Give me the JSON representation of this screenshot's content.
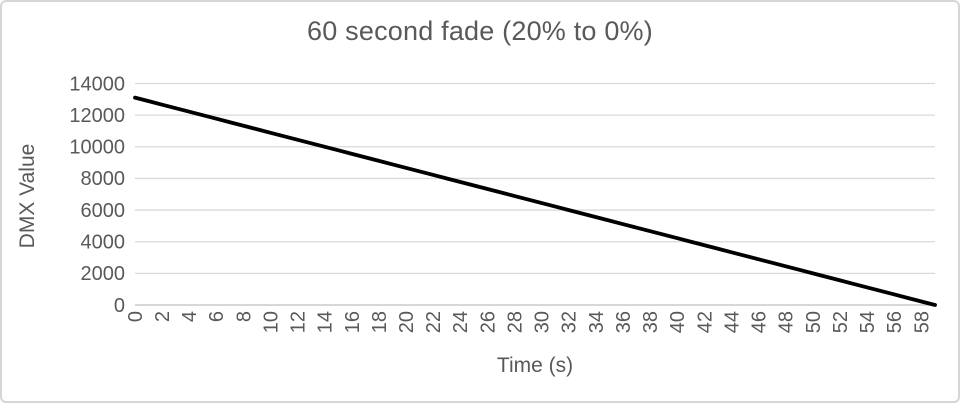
{
  "chart_data": {
    "type": "line",
    "title": "60 second fade (20% to 0%)",
    "xlabel": "Time (s)",
    "ylabel": "DMX Value",
    "x": [
      0,
      1,
      2,
      3,
      4,
      5,
      6,
      7,
      8,
      9,
      10,
      11,
      12,
      13,
      14,
      15,
      16,
      17,
      18,
      19,
      20,
      21,
      22,
      23,
      24,
      25,
      26,
      27,
      28,
      29,
      30,
      31,
      32,
      33,
      34,
      35,
      36,
      37,
      38,
      39,
      40,
      41,
      42,
      43,
      44,
      45,
      46,
      47,
      48,
      49,
      50,
      51,
      52,
      53,
      54,
      55,
      56,
      57,
      58,
      59
    ],
    "series": [
      {
        "name": "DMX Value",
        "values": [
          13107,
          12885,
          12663,
          12441,
          12218,
          11996,
          11774,
          11552,
          11330,
          11108,
          10885,
          10663,
          10441,
          10219,
          9997,
          9775,
          9553,
          9330,
          9108,
          8886,
          8664,
          8442,
          8220,
          7997,
          7775,
          7553,
          7331,
          7109,
          6887,
          6665,
          6442,
          6220,
          5998,
          5776,
          5554,
          5332,
          5110,
          4887,
          4665,
          4443,
          4221,
          3999,
          3777,
          3554,
          3332,
          3110,
          2888,
          2666,
          2444,
          2222,
          1999,
          1777,
          1555,
          1333,
          1111,
          889,
          666,
          444,
          222,
          0
        ]
      }
    ],
    "xlim": [
      0,
      59
    ],
    "ylim": [
      0,
      14000
    ],
    "ytick_step": 2000,
    "xtick_step": 2,
    "grid": "horizontal",
    "legend": "none",
    "x_tick_rotation_deg": -90,
    "colors": {
      "line": "#000000",
      "text": "#595959",
      "gridline": "#d9d9d9",
      "axis_line": "#bfbfbf",
      "background": "#ffffff",
      "border": "#d6d6d6"
    }
  }
}
